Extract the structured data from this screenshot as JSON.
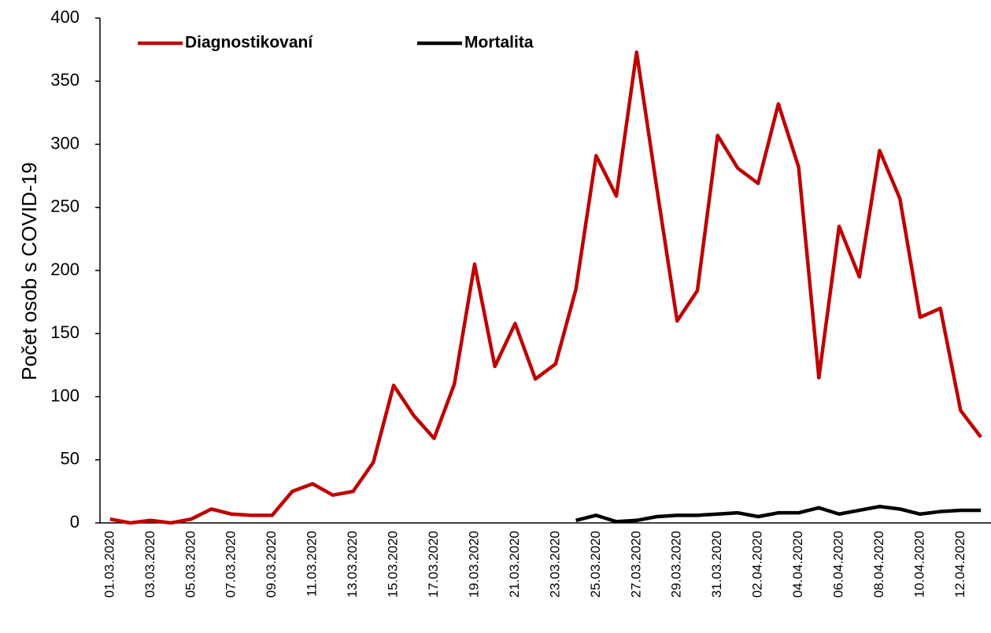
{
  "chart_data": {
    "type": "line",
    "y_label": "Počet osob s COVID-19",
    "categories": [
      "01.03.2020",
      null,
      "03.03.2020",
      null,
      "05.03.2020",
      null,
      "07.03.2020",
      null,
      "09.03.2020",
      null,
      "11.03.2020",
      null,
      "13.03.2020",
      null,
      "15.03.2020",
      null,
      "17.03.2020",
      null,
      "19.03.2020",
      null,
      "21.03.2020",
      null,
      "23.03.2020",
      null,
      "25.03.2020",
      null,
      "27.03.2020",
      null,
      "29.03.2020",
      null,
      "31.03.2020",
      null,
      "02.04.2020",
      null,
      "04.04.2020",
      null,
      "06.04.2020",
      null,
      "08.04.2020",
      null,
      "10.04.2020",
      null,
      "12.04.2020",
      null
    ],
    "series": [
      {
        "name": "Diagnostikovaní",
        "color": "#c00000",
        "values": [
          3,
          0,
          2,
          0,
          3,
          11,
          7,
          6,
          6,
          25,
          31,
          22,
          25,
          48,
          109,
          85,
          67,
          110,
          205,
          124,
          158,
          114,
          126,
          185,
          291,
          259,
          373,
          265,
          160,
          184,
          307,
          281,
          269,
          332,
          282,
          115,
          235,
          195,
          295,
          257,
          163,
          170,
          89,
          68
        ]
      },
      {
        "name": "Mortalita",
        "color": "#000000",
        "values": [
          null,
          null,
          null,
          null,
          null,
          null,
          null,
          null,
          null,
          null,
          null,
          null,
          null,
          null,
          null,
          null,
          null,
          null,
          null,
          null,
          null,
          null,
          null,
          2,
          6,
          1,
          2,
          5,
          6,
          6,
          7,
          8,
          5,
          8,
          8,
          12,
          7,
          10,
          13,
          11,
          7,
          9,
          10,
          10
        ]
      }
    ],
    "ylim": [
      0,
      400
    ],
    "yticks": [
      0,
      50,
      100,
      150,
      200,
      250,
      300,
      350,
      400
    ],
    "grid": false,
    "legend": "upper left"
  }
}
